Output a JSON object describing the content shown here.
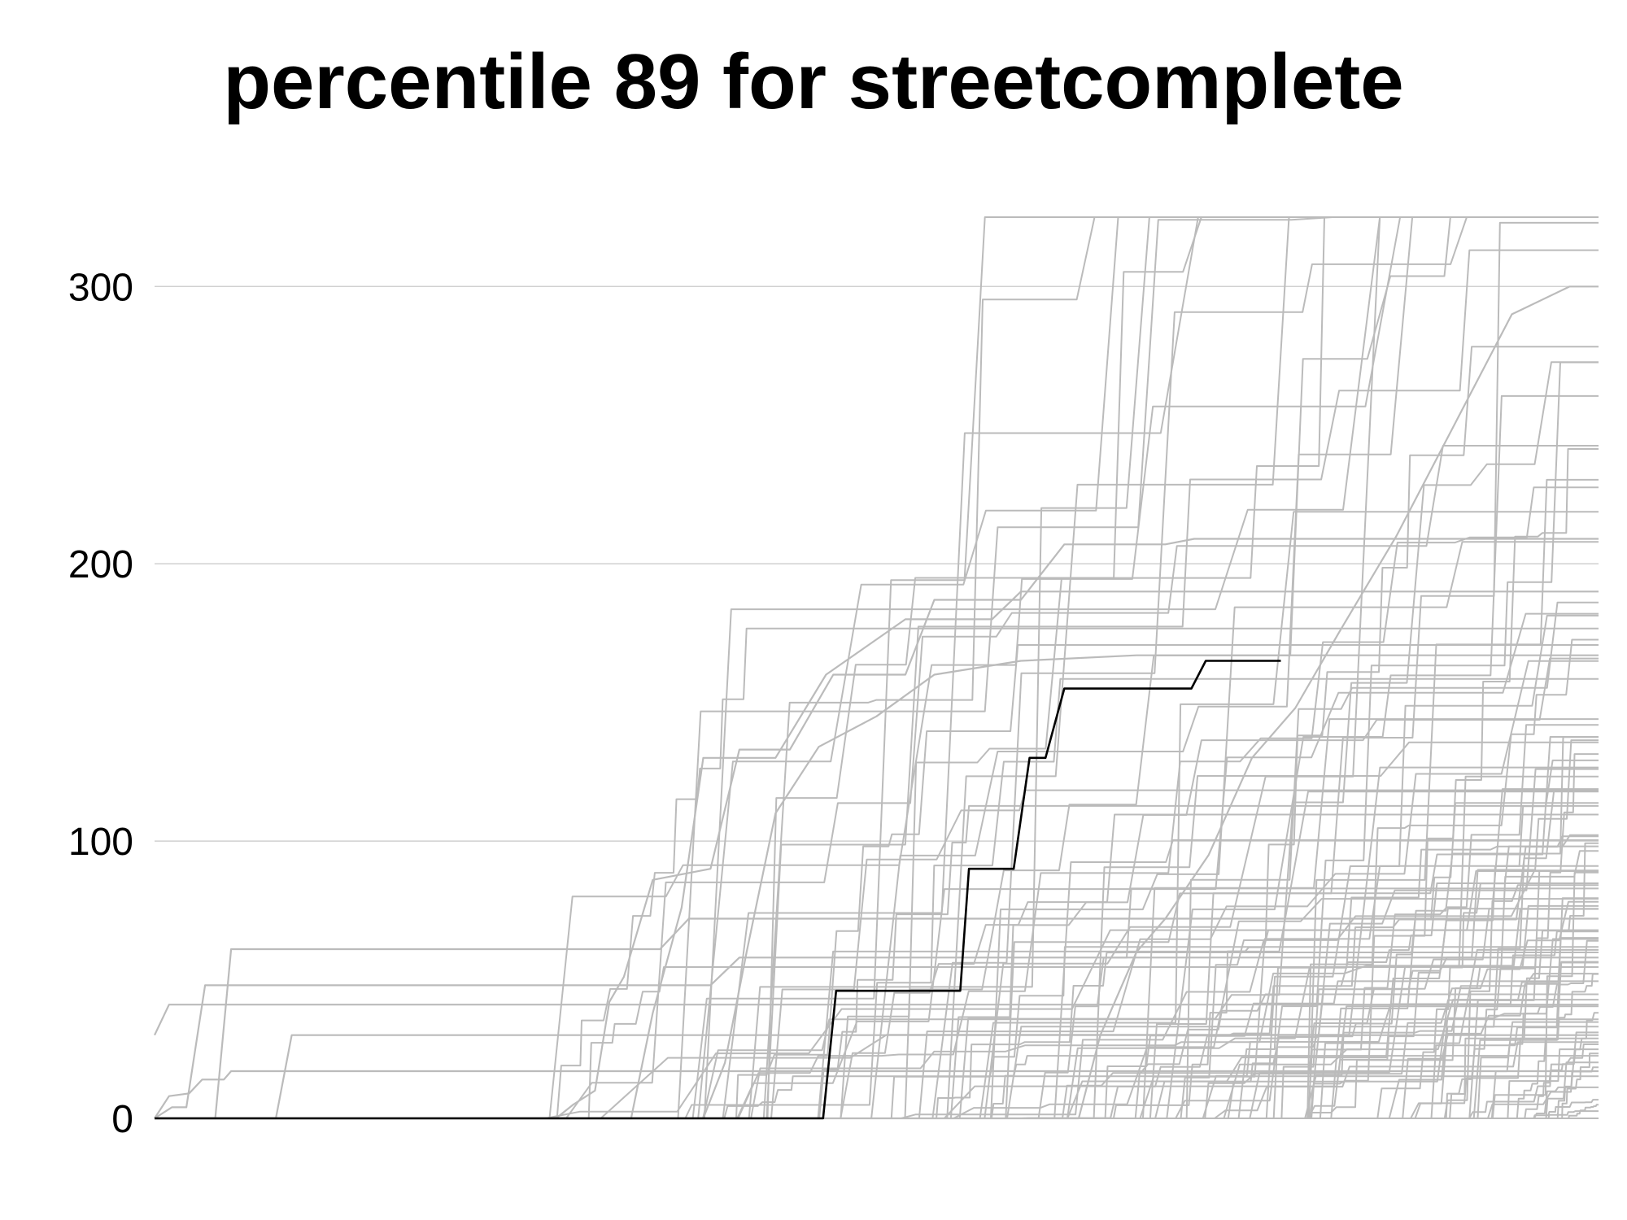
{
  "chart_data": {
    "type": "line",
    "title": "percentile 89 for streetcomplete",
    "xlabel": "",
    "ylabel": "",
    "ylim": [
      0,
      330
    ],
    "xlim": [
      0,
      100
    ],
    "y_ticks": [
      0,
      100,
      200,
      300
    ],
    "x_ticks": [],
    "grid": true,
    "legend": "none",
    "colors": {
      "highlight": "#000000",
      "background_series": "#bbbbbb",
      "grid": "#d0d0d0"
    },
    "background_series_count": 120,
    "series": [
      {
        "highlight": true,
        "points": [
          [
            0,
            0
          ],
          [
            46.3,
            0
          ],
          [
            47.2,
            46
          ],
          [
            55.8,
            46
          ],
          [
            56.4,
            90
          ],
          [
            59.5,
            90
          ],
          [
            60.6,
            130
          ],
          [
            61.7,
            130
          ],
          [
            63.0,
            155
          ],
          [
            71.8,
            155
          ],
          [
            72.8,
            165
          ],
          [
            78,
            165
          ]
        ]
      },
      {
        "points": [
          [
            0,
            30
          ],
          [
            1,
            41
          ],
          [
            52,
            41
          ],
          [
            100,
            41
          ]
        ]
      },
      {
        "points": [
          [
            0,
            0
          ],
          [
            1,
            8
          ],
          [
            2.4,
            9
          ],
          [
            3.3,
            14
          ],
          [
            4.8,
            14
          ],
          [
            5.3,
            17
          ],
          [
            7.6,
            17
          ],
          [
            100,
            17
          ]
        ]
      },
      {
        "points": [
          [
            0,
            0
          ],
          [
            1.2,
            4
          ],
          [
            2.2,
            4
          ],
          [
            3.5,
            48
          ],
          [
            38.5,
            48
          ],
          [
            40.5,
            58
          ],
          [
            100,
            58
          ]
        ]
      },
      {
        "points": [
          [
            0,
            0
          ],
          [
            4.2,
            0
          ],
          [
            5.3,
            61
          ],
          [
            28.5,
            61
          ],
          [
            35,
            61
          ],
          [
            37,
            72
          ],
          [
            55,
            72
          ],
          [
            100,
            72
          ]
        ]
      },
      {
        "points": [
          [
            0,
            0
          ],
          [
            8.4,
            0
          ],
          [
            9.5,
            30
          ],
          [
            34.5,
            30
          ],
          [
            100,
            30
          ]
        ]
      },
      {
        "points": [
          [
            0,
            0
          ],
          [
            27.8,
            0
          ],
          [
            29,
            5
          ],
          [
            30.5,
            10
          ],
          [
            31.5,
            42
          ],
          [
            32.5,
            51
          ],
          [
            34.5,
            86
          ],
          [
            38.5,
            90
          ],
          [
            40.5,
            133
          ],
          [
            44,
            133
          ],
          [
            47,
            160
          ],
          [
            52,
            160
          ],
          [
            54,
            187
          ],
          [
            60,
            187
          ],
          [
            63,
            207
          ],
          [
            70,
            207
          ],
          [
            72,
            209
          ],
          [
            100,
            209
          ]
        ]
      },
      {
        "points": [
          [
            0,
            0
          ],
          [
            33,
            0
          ],
          [
            34.5,
            38
          ],
          [
            36.5,
            76
          ],
          [
            38,
            130
          ],
          [
            43,
            130
          ],
          [
            46.5,
            160
          ],
          [
            52,
            180
          ],
          [
            58,
            180
          ],
          [
            60,
            190
          ],
          [
            100,
            190
          ]
        ]
      },
      {
        "points": [
          [
            0,
            0
          ],
          [
            38,
            0
          ],
          [
            39.5,
            20
          ],
          [
            41,
            60
          ],
          [
            43,
            110
          ],
          [
            46,
            134
          ],
          [
            50,
            145
          ],
          [
            54,
            160
          ],
          [
            60,
            165
          ],
          [
            68,
            167
          ],
          [
            100,
            167
          ]
        ]
      },
      {
        "points": [
          [
            0,
            0
          ],
          [
            64,
            0
          ],
          [
            65.5,
            30
          ],
          [
            68,
            60
          ],
          [
            70,
            72
          ],
          [
            73,
            95
          ],
          [
            76,
            130
          ],
          [
            79,
            148
          ],
          [
            82,
            175
          ],
          [
            86,
            210
          ],
          [
            90,
            250
          ],
          [
            94,
            290
          ],
          [
            98,
            300
          ],
          [
            100,
            300
          ]
        ]
      }
    ]
  }
}
